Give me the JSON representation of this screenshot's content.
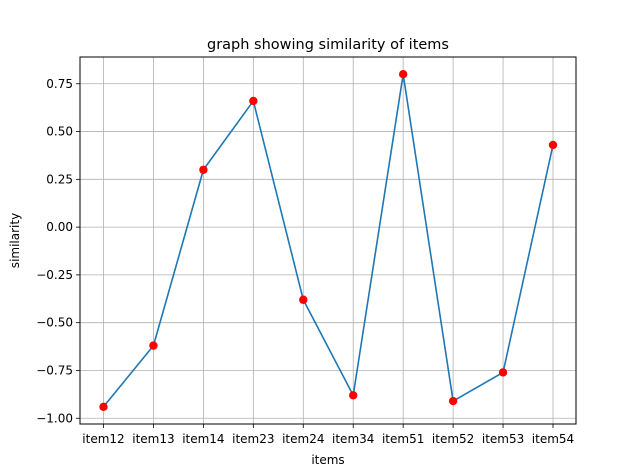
{
  "chart_data": {
    "type": "line",
    "title": "graph showing similarity of items",
    "xlabel": "items",
    "ylabel": "similarity",
    "categories": [
      "item12",
      "item13",
      "item14",
      "item23",
      "item24",
      "item34",
      "item51",
      "item52",
      "item53",
      "item54"
    ],
    "series": [
      {
        "values": [
          -0.94,
          -0.62,
          0.3,
          0.66,
          -0.38,
          -0.88,
          0.8,
          -0.91,
          -0.76,
          0.43
        ],
        "line_color": "#1f77b4",
        "marker_color": "#ff0000"
      }
    ],
    "ylim": [
      -1.03,
      0.89
    ],
    "yticks": [
      -1.0,
      -0.75,
      -0.5,
      -0.25,
      0.0,
      0.25,
      0.5,
      0.75
    ],
    "ytick_labels": [
      "−1.00",
      "−0.75",
      "−0.50",
      "−0.25",
      "0.00",
      "0.25",
      "0.50",
      "0.75"
    ],
    "grid": true
  }
}
